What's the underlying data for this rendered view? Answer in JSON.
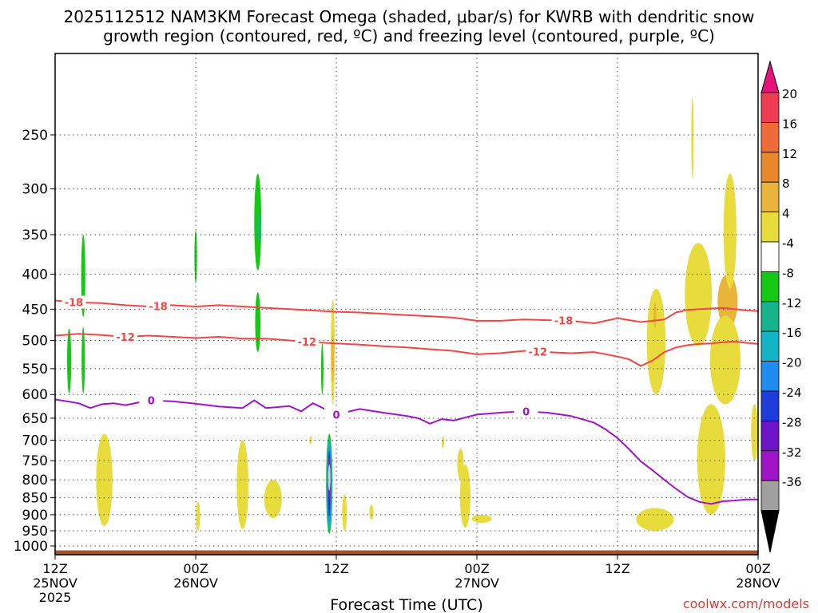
{
  "chart_data": {
    "type": "heatmap",
    "title_line1": "2025112512 NAM3KM Forecast Omega (shaded, μbar/s) for KWRB with dendritic snow",
    "title_line2": "growth region (contoured, red, ºC) and freezing level (contoured, purple, ºC)",
    "xlabel": "Forecast Time (UTC)",
    "credit": "coolwx.com/models",
    "x_range_hours": [
      0,
      60
    ],
    "x_ticks": [
      {
        "hour": 0,
        "l1": "12Z",
        "l2": "25NOV",
        "l3": "2025"
      },
      {
        "hour": 12,
        "l1": "00Z",
        "l2": "26NOV",
        "l3": ""
      },
      {
        "hour": 24,
        "l1": "12Z",
        "l2": "",
        "l3": ""
      },
      {
        "hour": 36,
        "l1": "00Z",
        "l2": "27NOV",
        "l3": ""
      },
      {
        "hour": 48,
        "l1": "12Z",
        "l2": "",
        "l3": ""
      },
      {
        "hour": 60,
        "l1": "00Z",
        "l2": "28NOV",
        "l3": ""
      }
    ],
    "y_ticks_hpa": [
      250,
      300,
      350,
      400,
      450,
      500,
      550,
      600,
      650,
      700,
      750,
      800,
      850,
      900,
      950,
      1000
    ],
    "y_range_hpa": [
      190,
      1030
    ],
    "colorbar": {
      "labels": [
        "20",
        "16",
        "12",
        "8",
        "4",
        "-4",
        "-8",
        "-12",
        "-16",
        "-20",
        "-24",
        "-28",
        "-32",
        "-36"
      ],
      "colors": [
        "#f03c52",
        "#f06a3a",
        "#e8872c",
        "#e8b43a",
        "#e8dc3c",
        "#ffffff",
        "#14c814",
        "#14b48c",
        "#14b4c8",
        "#1e8cf0",
        "#1e3cdc",
        "#6e14c8",
        "#a014c8",
        "#a0a0a0"
      ],
      "top_color": "#e6147a",
      "bottom_color": "#000000"
    },
    "omega_colors": {
      "pos4": "#e8dc3c",
      "pos8": "#e8b43a",
      "pos12": "#e8872c",
      "neg4": "#14c814",
      "neg8": "#14b48c",
      "neg12": "#14b4c8",
      "neg16": "#1e8cf0",
      "neg20": "#1e3cdc",
      "neg24": "#6e14c8",
      "neg28": "#a014c8",
      "neg32": "#d2d2d2"
    },
    "contour_colors": {
      "dgz": "#f04646",
      "freezing": "#a014c8",
      "ground": "#a0522d"
    },
    "ground_level_hpa": 1015,
    "contours": [
      {
        "name": "minus-18-isotherm",
        "label": "-18",
        "label_at": [
          1.6,
          8.8,
          43.4
        ],
        "points": [
          [
            0,
            437
          ],
          [
            2,
            440
          ],
          [
            4,
            441
          ],
          [
            6,
            444
          ],
          [
            8,
            446
          ],
          [
            10,
            444
          ],
          [
            12,
            446
          ],
          [
            14,
            444
          ],
          [
            16,
            446
          ],
          [
            18,
            448
          ],
          [
            20,
            450
          ],
          [
            22,
            452
          ],
          [
            24,
            454
          ],
          [
            26,
            455
          ],
          [
            28,
            457
          ],
          [
            30,
            459
          ],
          [
            32,
            461
          ],
          [
            34,
            463
          ],
          [
            36,
            468
          ],
          [
            38,
            468
          ],
          [
            40,
            466
          ],
          [
            42,
            467
          ],
          [
            44,
            468
          ],
          [
            46,
            472
          ],
          [
            47,
            468
          ],
          [
            48,
            464
          ],
          [
            50,
            470
          ],
          [
            52,
            466
          ],
          [
            53,
            455
          ],
          [
            54,
            451
          ],
          [
            55,
            450
          ],
          [
            56,
            449
          ],
          [
            57,
            448
          ],
          [
            58,
            450
          ],
          [
            59,
            452
          ],
          [
            60,
            453
          ]
        ]
      },
      {
        "name": "minus-12-isotherm",
        "label": "-12",
        "label_at": [
          6.0,
          21.5,
          41.2
        ],
        "points": [
          [
            0,
            492
          ],
          [
            2,
            489
          ],
          [
            4,
            491
          ],
          [
            6,
            494
          ],
          [
            8,
            492
          ],
          [
            10,
            494
          ],
          [
            12,
            496
          ],
          [
            14,
            494
          ],
          [
            16,
            497
          ],
          [
            18,
            497
          ],
          [
            20,
            500
          ],
          [
            22,
            503
          ],
          [
            24,
            505
          ],
          [
            26,
            507
          ],
          [
            28,
            510
          ],
          [
            30,
            512
          ],
          [
            32,
            515
          ],
          [
            34,
            518
          ],
          [
            36,
            524
          ],
          [
            38,
            522
          ],
          [
            40,
            518
          ],
          [
            42,
            520
          ],
          [
            44,
            522
          ],
          [
            46,
            520
          ],
          [
            48,
            528
          ],
          [
            49,
            533
          ],
          [
            50,
            545
          ],
          [
            51,
            535
          ],
          [
            52,
            520
          ],
          [
            53,
            512
          ],
          [
            54,
            508
          ],
          [
            55,
            506
          ],
          [
            56,
            505
          ],
          [
            57,
            503
          ],
          [
            58,
            502
          ],
          [
            59,
            504
          ],
          [
            60,
            506
          ]
        ]
      },
      {
        "name": "freezing-level",
        "label": "0",
        "label_at": [
          8.2,
          24.0,
          40.2
        ],
        "points": [
          [
            0,
            610
          ],
          [
            2,
            618
          ],
          [
            3,
            628
          ],
          [
            4,
            620
          ],
          [
            5,
            618
          ],
          [
            6,
            622
          ],
          [
            8,
            612
          ],
          [
            10,
            614
          ],
          [
            12,
            619
          ],
          [
            14,
            625
          ],
          [
            16,
            628
          ],
          [
            17,
            612
          ],
          [
            18,
            628
          ],
          [
            20,
            624
          ],
          [
            21,
            635
          ],
          [
            22,
            618
          ],
          [
            24,
            642
          ],
          [
            26,
            630
          ],
          [
            28,
            638
          ],
          [
            30,
            645
          ],
          [
            31,
            650
          ],
          [
            32,
            662
          ],
          [
            33,
            652
          ],
          [
            34,
            655
          ],
          [
            36,
            642
          ],
          [
            38,
            638
          ],
          [
            40,
            635
          ],
          [
            42,
            638
          ],
          [
            44,
            645
          ],
          [
            46,
            660
          ],
          [
            47,
            675
          ],
          [
            48,
            695
          ],
          [
            49,
            722
          ],
          [
            50,
            752
          ],
          [
            51,
            775
          ],
          [
            52,
            800
          ],
          [
            53,
            825
          ],
          [
            54,
            848
          ],
          [
            55,
            862
          ],
          [
            56,
            868
          ],
          [
            57,
            860
          ],
          [
            58,
            858
          ],
          [
            59,
            855
          ],
          [
            60,
            855
          ]
        ]
      }
    ],
    "omega_blobs": [
      {
        "sign": "neg",
        "color": "neg4",
        "t": 2.4,
        "p": [
          350,
          462
        ],
        "w": 0.35
      },
      {
        "sign": "neg",
        "color": "neg4",
        "t": 1.2,
        "p": [
          480,
          598
        ],
        "w": 0.35
      },
      {
        "sign": "neg",
        "color": "neg4",
        "t": 2.4,
        "p": [
          478,
          598
        ],
        "w": 0.28
      },
      {
        "sign": "neg",
        "color": "neg4",
        "t": 12.0,
        "p": [
          345,
          412
        ],
        "w": 0.22
      },
      {
        "sign": "neg",
        "color": "neg4",
        "t": 17.3,
        "p": [
          285,
          395
        ],
        "w": 0.6
      },
      {
        "sign": "neg",
        "color": "neg8",
        "t": 17.4,
        "p": [
          325,
          360
        ],
        "w": 0.12
      },
      {
        "sign": "neg",
        "color": "neg4",
        "t": 17.3,
        "p": [
          425,
          520
        ],
        "w": 0.45
      },
      {
        "sign": "neg",
        "color": "neg4",
        "t": 22.8,
        "p": [
          505,
          600
        ],
        "w": 0.15
      },
      {
        "sign": "neg",
        "color": "neg4",
        "t": 23.4,
        "p": [
          685,
          960
        ],
        "w": 0.55
      },
      {
        "sign": "neg",
        "color": "neg8",
        "t": 23.4,
        "p": [
          695,
          950
        ],
        "w": 0.47
      },
      {
        "sign": "neg",
        "color": "neg12",
        "t": 23.4,
        "p": [
          705,
          940
        ],
        "w": 0.38
      },
      {
        "sign": "neg",
        "color": "neg16",
        "t": 23.4,
        "p": [
          715,
          925
        ],
        "w": 0.3
      },
      {
        "sign": "neg",
        "color": "neg20",
        "t": 23.4,
        "p": [
          725,
          905
        ],
        "w": 0.23
      },
      {
        "sign": "neg",
        "color": "neg24",
        "t": 23.4,
        "p": [
          735,
          880
        ],
        "w": 0.17
      },
      {
        "sign": "neg",
        "color": "neg28",
        "t": 23.4,
        "p": [
          745,
          855
        ],
        "w": 0.11
      },
      {
        "sign": "neg",
        "color": "neg32",
        "t": 23.4,
        "p": [
          760,
          830
        ],
        "w": 0.04
      },
      {
        "sign": "pos",
        "color": "pos4",
        "t": 4.2,
        "p": [
          685,
          935
        ],
        "w": 1.4
      },
      {
        "sign": "pos",
        "color": "pos4",
        "t": 12.2,
        "p": [
          860,
          950
        ],
        "w": 0.35
      },
      {
        "sign": "pos",
        "color": "pos4",
        "t": 16.0,
        "p": [
          700,
          945
        ],
        "w": 1.0
      },
      {
        "sign": "pos",
        "color": "pos4",
        "t": 18.6,
        "p": [
          800,
          910
        ],
        "w": 1.5
      },
      {
        "sign": "pos",
        "color": "pos4",
        "t": 21.8,
        "p": [
          690,
          710
        ],
        "w": 0.12
      },
      {
        "sign": "pos",
        "color": "pos4",
        "t": 23.7,
        "p": [
          435,
          620
        ],
        "w": 0.35
      },
      {
        "sign": "pos",
        "color": "pos8",
        "t": 23.7,
        "p": [
          490,
          575
        ],
        "w": 0.16
      },
      {
        "sign": "pos",
        "color": "pos4",
        "t": 24.7,
        "p": [
          840,
          950
        ],
        "w": 0.4
      },
      {
        "sign": "pos",
        "color": "pos4",
        "t": 27.0,
        "p": [
          870,
          915
        ],
        "w": 0.35
      },
      {
        "sign": "pos",
        "color": "pos4",
        "t": 33.1,
        "p": [
          690,
          720
        ],
        "w": 0.18
      },
      {
        "sign": "pos",
        "color": "pos4",
        "t": 34.6,
        "p": [
          720,
          800
        ],
        "w": 0.55
      },
      {
        "sign": "pos",
        "color": "pos4",
        "t": 35.0,
        "p": [
          760,
          940
        ],
        "w": 0.9
      },
      {
        "sign": "pos",
        "color": "pos4",
        "t": 36.4,
        "p": [
          900,
          925
        ],
        "w": 1.7
      },
      {
        "sign": "pos",
        "color": "pos4",
        "t": 51.2,
        "p": [
          880,
          950
        ],
        "w": 3.2
      },
      {
        "sign": "pos",
        "color": "pos4",
        "t": 51.3,
        "p": [
          420,
          600
        ],
        "w": 1.6
      },
      {
        "sign": "pos",
        "color": "pos8",
        "t": 51.2,
        "p": [
          440,
          480
        ],
        "w": 0.22
      },
      {
        "sign": "pos",
        "color": "pos4",
        "t": 54.9,
        "p": [
          360,
          510
        ],
        "w": 2.3
      },
      {
        "sign": "pos",
        "color": "pos4",
        "t": 54.4,
        "p": [
          220,
          290
        ],
        "w": 0.18
      },
      {
        "sign": "pos",
        "color": "pos8",
        "t": 57.4,
        "p": [
          400,
          480
        ],
        "w": 1.7
      },
      {
        "sign": "pos",
        "color": "pos4",
        "t": 57.6,
        "p": [
          285,
          420
        ],
        "w": 1.1
      },
      {
        "sign": "pos",
        "color": "pos4",
        "t": 57.2,
        "p": [
          460,
          620
        ],
        "w": 2.6
      },
      {
        "sign": "pos",
        "color": "pos4",
        "t": 56.0,
        "p": [
          620,
          900
        ],
        "w": 2.4
      },
      {
        "sign": "pos",
        "color": "pos4",
        "t": 59.7,
        "p": [
          620,
          750
        ],
        "w": 0.6
      }
    ]
  }
}
